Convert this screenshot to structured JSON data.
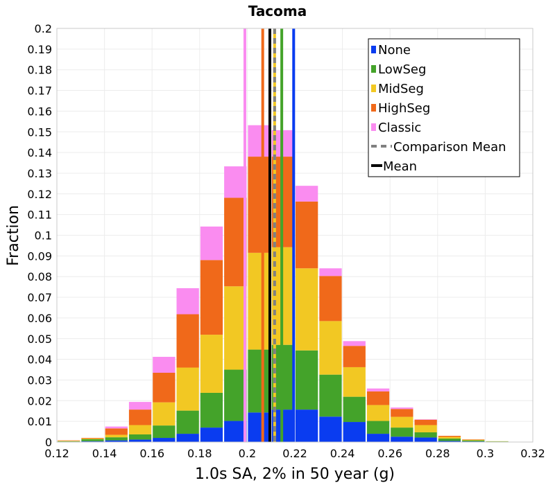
{
  "chart_data": {
    "type": "bar",
    "stacked": true,
    "title": "Tacoma",
    "xlabel": "1.0s SA, 2% in 50 year (g)",
    "ylabel": "Fraction",
    "xlim": [
      0.12,
      0.32
    ],
    "ylim": [
      0,
      0.2
    ],
    "bin_width": 0.01,
    "xticks": [
      "0.12",
      "0.14",
      "0.16",
      "0.18",
      "0.2",
      "0.22",
      "0.24",
      "0.26",
      "0.28",
      "0.3",
      "0.32"
    ],
    "yticks": [
      "0",
      "0.01",
      "0.02",
      "0.03",
      "0.04",
      "0.05",
      "0.06",
      "0.07",
      "0.08",
      "0.09",
      "0.1",
      "0.11",
      "0.12",
      "0.13",
      "0.14",
      "0.15",
      "0.16",
      "0.17",
      "0.18",
      "0.19",
      "0.2"
    ],
    "grid": true,
    "legend_position": "top-right",
    "bin_centers": [
      0.125,
      0.135,
      0.145,
      0.155,
      0.165,
      0.175,
      0.185,
      0.195,
      0.205,
      0.215,
      0.225,
      0.235,
      0.245,
      0.255,
      0.265,
      0.275,
      0.285,
      0.295,
      0.305
    ],
    "series": [
      {
        "name": "None",
        "color": "#0a3cf0",
        "values": [
          0.0002,
          0.0004,
          0.0008,
          0.0012,
          0.002,
          0.004,
          0.007,
          0.0102,
          0.0143,
          0.0157,
          0.0157,
          0.0123,
          0.0097,
          0.004,
          0.0026,
          0.0022,
          0.0005,
          0.0003,
          0.0001
        ]
      },
      {
        "name": "LowSeg",
        "color": "#44a32a",
        "values": [
          0.0002,
          0.001,
          0.0015,
          0.0025,
          0.006,
          0.0112,
          0.0168,
          0.0248,
          0.0304,
          0.0313,
          0.0286,
          0.0203,
          0.0122,
          0.0062,
          0.0044,
          0.0025,
          0.0012,
          0.0005,
          0.0002
        ]
      },
      {
        "name": "MidSeg",
        "color": "#f2c823",
        "values": [
          0.0002,
          0.0003,
          0.0012,
          0.0045,
          0.0112,
          0.0208,
          0.0281,
          0.0403,
          0.0468,
          0.0472,
          0.0397,
          0.0259,
          0.0143,
          0.0077,
          0.0052,
          0.0035,
          0.0008,
          0.0003,
          0.0001
        ]
      },
      {
        "name": "HighSeg",
        "color": "#f0691a",
        "values": [
          0.0002,
          0.0003,
          0.0031,
          0.0075,
          0.0143,
          0.0258,
          0.0361,
          0.0428,
          0.0465,
          0.0438,
          0.0323,
          0.0218,
          0.0103,
          0.0066,
          0.0038,
          0.0026,
          0.0005,
          0.0002,
          0.0
        ]
      },
      {
        "name": "Classic",
        "color": "#fa8cf0",
        "values": [
          0.0,
          0.0,
          0.0009,
          0.0037,
          0.0077,
          0.0126,
          0.0162,
          0.0152,
          0.0152,
          0.0128,
          0.0076,
          0.0037,
          0.0023,
          0.0014,
          0.0007,
          0.0002,
          0.0,
          0.0,
          0.0
        ]
      }
    ],
    "mean_lines": [
      {
        "name": "None",
        "x": 0.2195,
        "color": "#0a3cf0"
      },
      {
        "name": "LowSeg",
        "x": 0.2145,
        "color": "#44a32a"
      },
      {
        "name": "MidSeg",
        "x": 0.2115,
        "color": "#f2c823"
      },
      {
        "name": "HighSeg",
        "x": 0.2065,
        "color": "#f0691a"
      },
      {
        "name": "Classic",
        "x": 0.199,
        "color": "#fa8cf0"
      }
    ],
    "comparison_mean": {
      "label": "Comparison Mean",
      "x": 0.2115,
      "color": "#808080"
    },
    "mean": {
      "label": "Mean",
      "x": 0.2095,
      "color": "#000000"
    }
  }
}
